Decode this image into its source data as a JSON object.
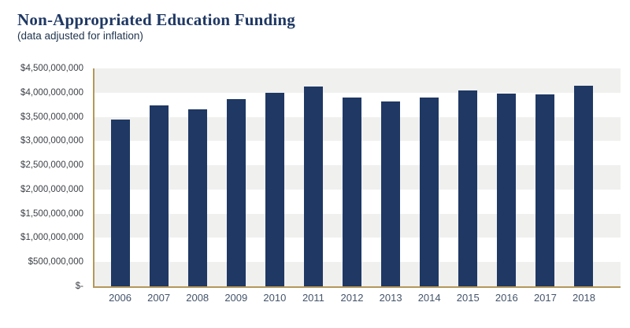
{
  "header": {
    "title": "Non-Appropriated Education Funding",
    "subtitle": "(data adjusted for inflation)"
  },
  "chart_data": {
    "type": "bar",
    "title": "Non-Appropriated Education Funding",
    "subtitle": "(data adjusted for inflation)",
    "categories": [
      "2006",
      "2007",
      "2008",
      "2009",
      "2010",
      "2011",
      "2012",
      "2013",
      "2014",
      "2015",
      "2016",
      "2017",
      "2018"
    ],
    "values": [
      3450000000,
      3740000000,
      3650000000,
      3860000000,
      3990000000,
      4130000000,
      3900000000,
      3810000000,
      3900000000,
      4040000000,
      3980000000,
      3970000000,
      4140000000
    ],
    "xlabel": "",
    "ylabel": "",
    "ylim": [
      0,
      4500000000
    ],
    "ytick_step": 500000000,
    "ytick_labels_top_down": [
      "$4,500,000,000",
      "$4,000,000,000",
      "$3,500,000,000",
      "$3,000,000,000",
      "$2,500,000,000",
      "$2,000,000,000",
      "$1,500,000,000",
      "$1,000,000,000",
      "$500,000,000",
      "$-"
    ],
    "grid": "alternating horizontal bands every $500M, gray/white, top band gray",
    "legend": "none",
    "colors": {
      "bar": "#1f3864",
      "axis_line": "#b4975a",
      "band_gray": "#f0f0ef",
      "band_white": "#ffffff",
      "title_text": "#1f3864",
      "subtitle_text": "#22364f",
      "ytick_text": "#3d4147",
      "xtick_text": "#44546a",
      "background": "#ffffff"
    }
  }
}
